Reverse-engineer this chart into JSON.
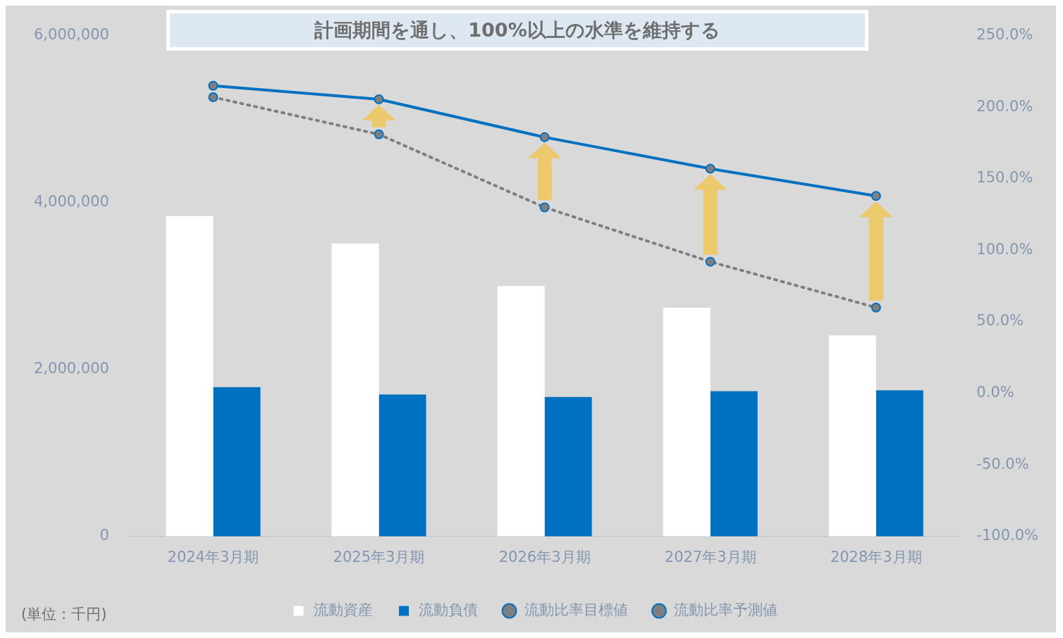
{
  "chart_data": {
    "type": "bar",
    "title": "計画期間を通し、100%以上の水準を維持する",
    "categories": [
      "2024年3月期",
      "2025年3月期",
      "2026年3月期",
      "2027年3月期",
      "2028年3月期"
    ],
    "series": [
      {
        "name": "流動資産",
        "color": "#ffffff",
        "values": [
          3840000,
          3510000,
          3000000,
          2740000,
          2410000
        ]
      },
      {
        "name": "流動負債",
        "color": "#0070c0",
        "values": [
          1790000,
          1700000,
          1670000,
          1740000,
          1750000
        ]
      },
      {
        "name": "流動比率目標値",
        "type": "line",
        "axis": "y2",
        "color": "#0070c0",
        "line_style": "solid",
        "values": [
          215,
          205.5,
          179,
          157,
          138
        ]
      },
      {
        "name": "流動比率予測値",
        "type": "line",
        "axis": "y2",
        "color": "#7f7f7f",
        "line_style": "dotted",
        "values": [
          207,
          181,
          130,
          92,
          60
        ]
      }
    ],
    "ylim": [
      0,
      6000000
    ],
    "yticks": [
      {
        "value": 0,
        "label": "0"
      },
      {
        "value": 2000000,
        "label": "2,000,000"
      },
      {
        "value": 4000000,
        "label": "4,000,000"
      },
      {
        "value": 6000000,
        "label": "6,000,000"
      }
    ],
    "y2lim": [
      -100,
      250
    ],
    "y2ticks": [
      {
        "value": -100,
        "label": "-100.0%"
      },
      {
        "value": -50,
        "label": "-50.0%"
      },
      {
        "value": 0,
        "label": "0.0%"
      },
      {
        "value": 50,
        "label": "50.0%"
      },
      {
        "value": 100,
        "label": "100.0%"
      },
      {
        "value": 150,
        "label": "150.0%"
      },
      {
        "value": 200,
        "label": "200.0%"
      },
      {
        "value": 250,
        "label": "250.0%"
      }
    ],
    "grid": false,
    "legend": "bottom",
    "marker": "circle",
    "annotations": [
      "(単位：千円)"
    ]
  }
}
